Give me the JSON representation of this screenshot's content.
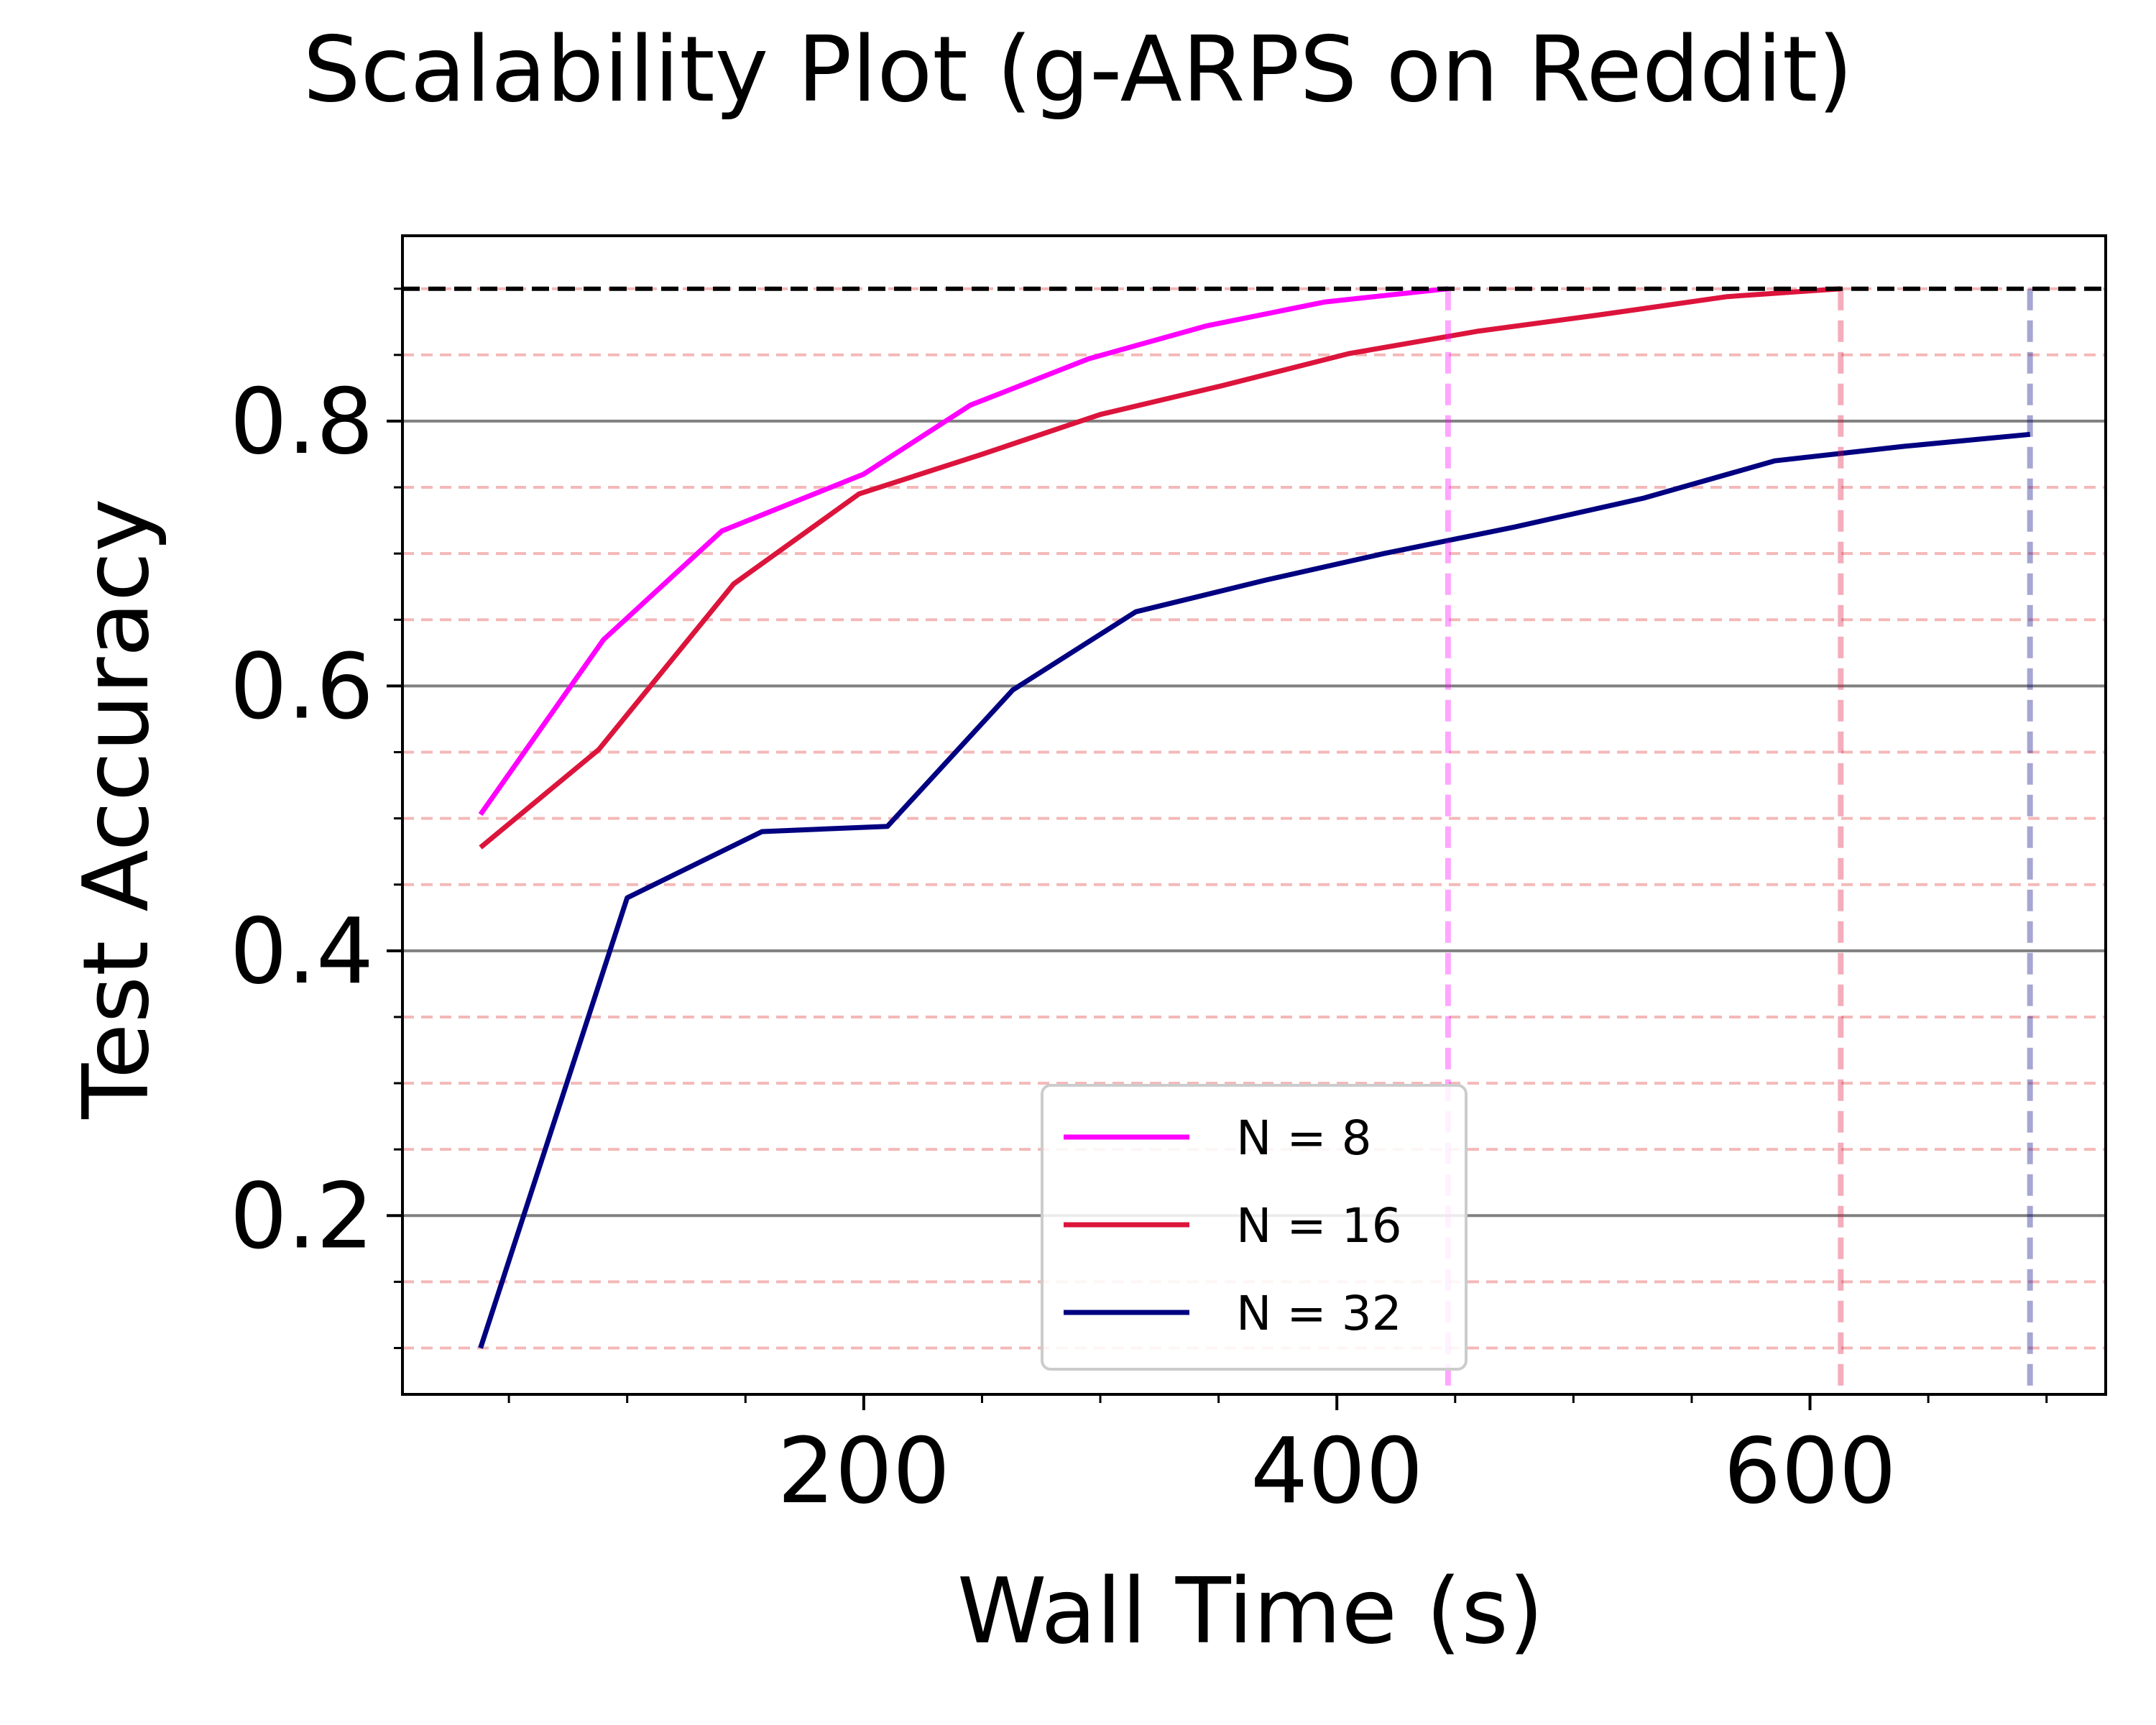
{
  "chart_data": {
    "type": "line",
    "title": "Scalability Plot (g-ARPS on Reddit)",
    "xlabel": "Wall Time (s)",
    "ylabel": "Test Accuracy",
    "xlim": [
      5,
      725
    ],
    "ylim": [
      0.065,
      0.94
    ],
    "x_ticks": [
      200,
      400,
      600
    ],
    "x_tick_labels": [
      "200",
      "400",
      "600"
    ],
    "x_minor_ticks": [
      50,
      100,
      150,
      250,
      300,
      350,
      450,
      500,
      550,
      650,
      700
    ],
    "y_ticks": [
      0.2,
      0.4,
      0.6,
      0.8
    ],
    "y_tick_labels": [
      "0.2",
      "0.4",
      "0.6",
      "0.8"
    ],
    "y_minor_ticks": [
      0.1,
      0.15,
      0.25,
      0.3,
      0.35,
      0.45,
      0.5,
      0.55,
      0.65,
      0.7,
      0.75,
      0.85,
      0.9
    ],
    "grid": {
      "major": true,
      "major_color": "#808080",
      "minor": true,
      "minor_color": "#f4b8b8"
    },
    "target_accuracy": 0.9,
    "target_line_color": "#000000",
    "legend": {
      "position": "lower center",
      "entries": [
        "N = 8",
        "N = 16",
        "N = 32"
      ]
    },
    "series": [
      {
        "name": "N = 8",
        "color": "#ff00ff",
        "end_time": 447,
        "points": [
          [
            38,
            0.503
          ],
          [
            90,
            0.635
          ],
          [
            140,
            0.717
          ],
          [
            200,
            0.76
          ],
          [
            245,
            0.812
          ],
          [
            295,
            0.847
          ],
          [
            345,
            0.872
          ],
          [
            395,
            0.89
          ],
          [
            447,
            0.9
          ]
        ]
      },
      {
        "name": "N = 16",
        "color": "#dc143c",
        "end_time": 613,
        "points": [
          [
            38,
            0.478
          ],
          [
            88,
            0.552
          ],
          [
            145,
            0.677
          ],
          [
            198,
            0.745
          ],
          [
            250,
            0.775
          ],
          [
            300,
            0.805
          ],
          [
            352,
            0.827
          ],
          [
            405,
            0.851
          ],
          [
            460,
            0.868
          ],
          [
            510,
            0.88
          ],
          [
            565,
            0.894
          ],
          [
            613,
            0.9
          ]
        ]
      },
      {
        "name": "N = 32",
        "color": "#000080",
        "end_time": 693,
        "points": [
          [
            38,
            0.1
          ],
          [
            100,
            0.44
          ],
          [
            157,
            0.49
          ],
          [
            210,
            0.494
          ],
          [
            263,
            0.597
          ],
          [
            315,
            0.656
          ],
          [
            370,
            0.68
          ],
          [
            420,
            0.7
          ],
          [
            475,
            0.72
          ],
          [
            530,
            0.742
          ],
          [
            585,
            0.77
          ],
          [
            640,
            0.781
          ],
          [
            693,
            0.79
          ]
        ]
      }
    ]
  }
}
